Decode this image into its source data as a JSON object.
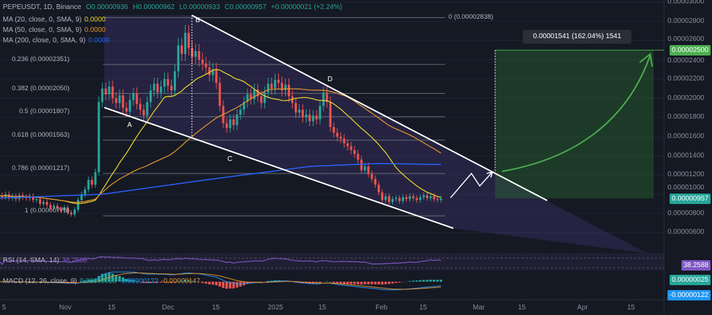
{
  "header": {
    "symbol": "PEPEUSDT, 1D, Binance",
    "o": "O0.00000936",
    "h": "H0.00000962",
    "l": "L0.00000933",
    "c": "C0.00000957",
    "chg": "+0.00000021 (+2.24%)"
  },
  "indicators": [
    {
      "label": "MA (20, close, 0, SMA, 9)",
      "value": "0.0000",
      "color": "#e6d22e"
    },
    {
      "label": "MA (50, close, 0, SMA, 9)",
      "value": "0.0000",
      "color": "#e0922d"
    },
    {
      "label": "MA (200, close, 0, SMA, 9)",
      "value": "0.0000",
      "color": "#2962ff"
    }
  ],
  "fib": [
    {
      "label": "0 (0.00002838)",
      "price": 2.838e-05
    },
    {
      "label": "0.236 (0.00002351)",
      "price": 2.351e-05
    },
    {
      "label": "0.382 (0.00002050)",
      "price": 2.05e-05
    },
    {
      "label": "0.5 (0.00001807)",
      "price": 1.807e-05
    },
    {
      "label": "0.618 (0.00001563)",
      "price": 1.563e-05
    },
    {
      "label": "0.786 (0.00001217)",
      "price": 1.217e-05
    },
    {
      "label": "1 (0.00000775)",
      "price": 7.75e-06
    }
  ],
  "points": [
    "A",
    "B",
    "C",
    "D"
  ],
  "measure_label": "0.00001541 (162.04%) 1541",
  "price_axis": [
    "0.00003000",
    "0.00002800",
    "0.00002600",
    "0.00002400",
    "0.00002200",
    "0.00002000",
    "0.00001800",
    "0.00001600",
    "0.00001400",
    "0.00001200",
    "0.00001000",
    "0.00000800",
    "0.00000600"
  ],
  "tags": {
    "target": "0.00002500",
    "last": "0.00000957",
    "rsi": "38.2588",
    "macd": "0.00000025",
    "signal": "-0.00000122"
  },
  "rsi_legend": {
    "label": "RSI (14, SMA, 14)",
    "value": "38.2588"
  },
  "macd_legend": {
    "label": "MACD (12, 26, close, 9)",
    "hist": "0.00000025",
    "macd": "-0.00000122",
    "signal": "-0.00000147"
  },
  "time_axis": [
    "5",
    "Nov",
    "15",
    "Dec",
    "15",
    "2025",
    "15",
    "Feb",
    "15",
    "Mar",
    "15",
    "Apr",
    "15"
  ],
  "colors": {
    "up": "#26a69a",
    "down": "#ef5350",
    "channel": "#ffffff",
    "zone": "#2d5a2f",
    "arrow": "#4caf50",
    "rsi": "#7e57c2"
  },
  "chart_data": {
    "type": "candlestick",
    "start_date": "2024-10-14",
    "ylim": [
      5e-06,
      3e-05
    ],
    "closes": [
      9.9,
      9.7,
      10.0,
      9.6,
      9.8,
      9.5,
      9.9,
      9.7,
      9.6,
      9.8,
      9.4,
      9.5,
      9.0,
      9.2,
      8.9,
      8.6,
      8.8,
      8.5,
      8.3,
      8.6,
      8.1,
      7.9,
      8.4,
      9.4,
      10.0,
      10.5,
      11.5,
      11.0,
      12.3,
      19.6,
      21.0,
      20.4,
      21.2,
      20.0,
      19.5,
      20.3,
      19.0,
      18.6,
      19.8,
      20.5,
      19.4,
      18.8,
      18.2,
      19.6,
      20.8,
      21.5,
      20.6,
      21.2,
      22.0,
      21.3,
      20.8,
      22.8,
      25.5,
      24.6,
      26.8,
      25.2,
      24.3,
      24.9,
      24.0,
      23.6,
      23.2,
      22.4,
      23.0,
      21.6,
      19.2,
      17.4,
      16.9,
      17.8,
      17.2,
      18.3,
      18.8,
      19.6,
      20.4,
      19.9,
      20.9,
      20.2,
      19.5,
      20.6,
      21.5,
      21.0,
      21.9,
      21.6,
      20.8,
      21.4,
      20.2,
      19.5,
      18.5,
      18.8,
      18.0,
      18.3,
      17.6,
      18.2,
      17.8,
      19.2,
      20.6,
      19.6,
      17.0,
      16.4,
      16.0,
      15.8,
      15.3,
      15.0,
      14.6,
      14.2,
      13.6,
      12.5,
      12.9,
      12.1,
      11.6,
      11.0,
      10.2,
      9.4,
      9.8,
      9.2,
      9.5,
      9.6,
      9.3,
      9.7,
      9.5,
      9.8,
      9.6,
      9.4,
      9.7,
      9.9,
      9.6,
      9.8,
      9.5,
      9.4,
      9.57
    ],
    "close_unit": 1e-06,
    "ma200": [
      [
        0,
        9.6
      ],
      [
        30,
        10.0
      ],
      [
        60,
        11.5
      ],
      [
        90,
        12.9
      ],
      [
        110,
        13.2
      ],
      [
        128,
        13.1
      ]
    ],
    "target_price": 2.5e-05,
    "last_price": 9.57e-06
  }
}
